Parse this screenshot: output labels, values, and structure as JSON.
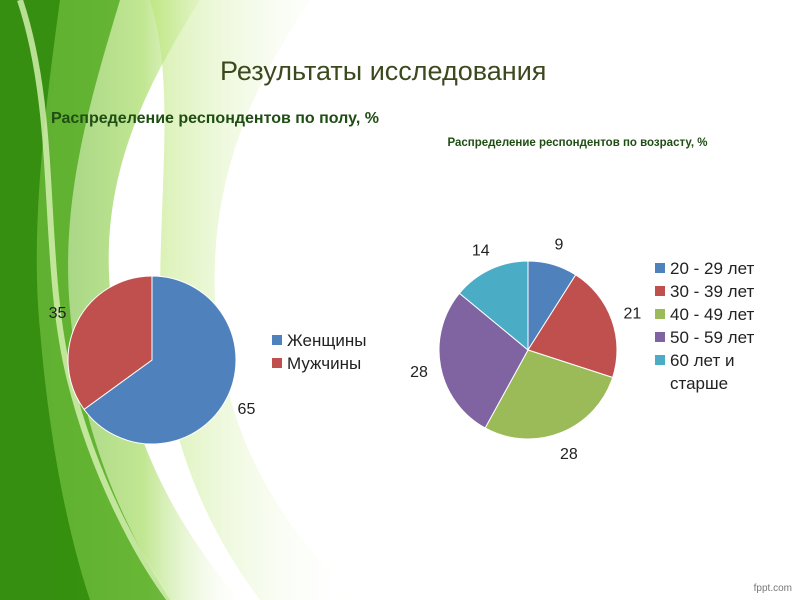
{
  "slide": {
    "title": "Результаты исследования",
    "watermark": "fppt.com"
  },
  "colors": {
    "blue": "#4f81bd",
    "red": "#c0504d",
    "green": "#9bbb59",
    "purple": "#8064a2",
    "cyan": "#4bacc6",
    "title_green": "#1f4d14"
  },
  "chart_data": [
    {
      "type": "pie",
      "title": "Распределение респондентов по полу, %",
      "categories": [
        "Женщины",
        "Мужчины"
      ],
      "values": [
        65,
        35
      ],
      "colors": [
        "#4f81bd",
        "#c0504d"
      ],
      "legend": "right"
    },
    {
      "type": "pie",
      "title": "Распределение респондентов по возрасту, %",
      "categories": [
        "20 - 29 лет",
        "30 - 39 лет",
        "40 - 49 лет",
        "50 - 59 лет",
        "60 лет и старше"
      ],
      "values": [
        9,
        21,
        28,
        28,
        14
      ],
      "colors": [
        "#4f81bd",
        "#c0504d",
        "#9bbb59",
        "#8064a2",
        "#4bacc6"
      ],
      "legend": "right"
    }
  ]
}
